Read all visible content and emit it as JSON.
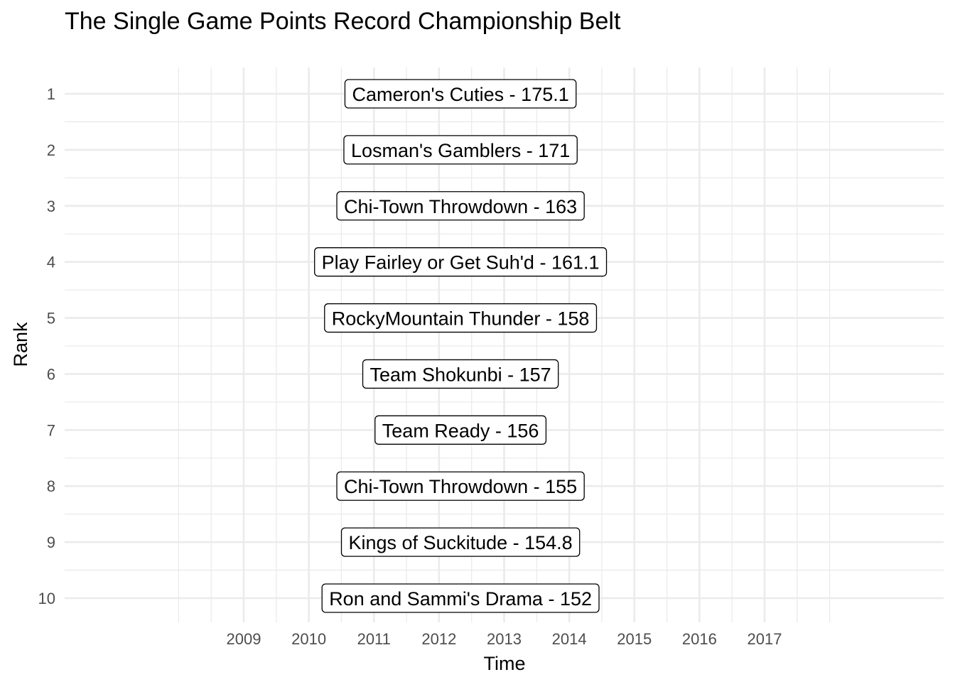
{
  "chart_data": {
    "type": "table",
    "title": "The Single Game Points Record Championship Belt",
    "xlabel": "Time",
    "ylabel": "Rank",
    "x_ticks": [
      "2009",
      "2010",
      "2011",
      "2012",
      "2013",
      "2014",
      "2015",
      "2016",
      "2017"
    ],
    "x_range": [
      2006.25,
      2019.75
    ],
    "y_ticks": [
      1,
      2,
      3,
      4,
      5,
      6,
      7,
      8,
      9,
      10
    ],
    "y_range": [
      1,
      10
    ],
    "y_reversed": true,
    "grid": true,
    "legend": "none",
    "labels": [
      {
        "rank": 1,
        "x": 2012.33,
        "text": "Cameron's Cuties - 175.1"
      },
      {
        "rank": 2,
        "x": 2012.33,
        "text": "Losman's Gamblers - 171"
      },
      {
        "rank": 3,
        "x": 2012.33,
        "text": "Chi-Town Throwdown - 163"
      },
      {
        "rank": 4,
        "x": 2012.33,
        "text": "Play Fairley or Get Suh'd - 161.1"
      },
      {
        "rank": 5,
        "x": 2012.33,
        "text": "RockyMountain Thunder - 158"
      },
      {
        "rank": 6,
        "x": 2012.33,
        "text": "Team Shokunbi - 157"
      },
      {
        "rank": 7,
        "x": 2012.33,
        "text": "Team Ready - 156"
      },
      {
        "rank": 8,
        "x": 2012.33,
        "text": "Chi-Town Throwdown - 155"
      },
      {
        "rank": 9,
        "x": 2012.33,
        "text": "Kings of Suckitude - 154.8"
      },
      {
        "rank": 10,
        "x": 2012.33,
        "text": "Ron and Sammi's Drama - 152"
      }
    ]
  }
}
